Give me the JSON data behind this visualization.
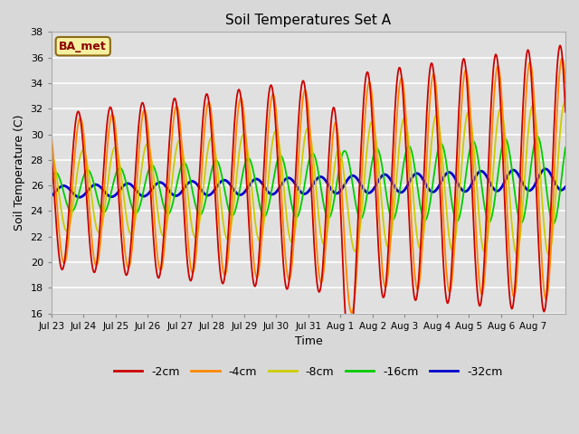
{
  "title": "Soil Temperatures Set A",
  "xlabel": "Time",
  "ylabel": "Soil Temperature (C)",
  "ylim": [
    16,
    38
  ],
  "yticks": [
    16,
    18,
    20,
    22,
    24,
    26,
    28,
    30,
    32,
    34,
    36,
    38
  ],
  "series": {
    "-2cm": {
      "color": "#cc0000",
      "lw": 1.3
    },
    "-4cm": {
      "color": "#ff8800",
      "lw": 1.3
    },
    "-8cm": {
      "color": "#cccc00",
      "lw": 1.3
    },
    "-16cm": {
      "color": "#00cc00",
      "lw": 1.3
    },
    "-32cm": {
      "color": "#0000cc",
      "lw": 2.0
    }
  },
  "tick_labels": [
    "Jul 23",
    "Jul 24",
    "Jul 25",
    "Jul 26",
    "Jul 27",
    "Jul 28",
    "Jul 29",
    "Jul 30",
    "Jul 31",
    "Aug 1",
    "Aug 2",
    "Aug 3",
    "Aug 4",
    "Aug 5",
    "Aug 6",
    "Aug 7"
  ],
  "n_days": 16,
  "annotation_text": "BA_met",
  "fig_facecolor": "#d8d8d8",
  "ax_facecolor": "#e0e0e0"
}
